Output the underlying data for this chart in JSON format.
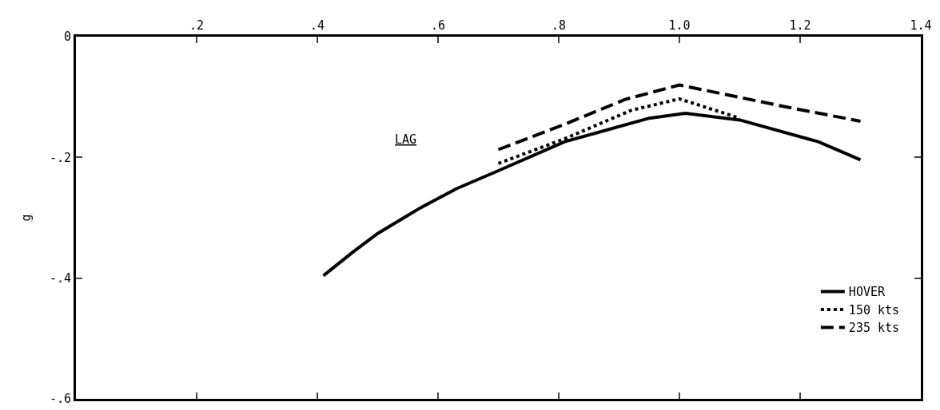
{
  "chart_data": {
    "type": "line",
    "ylabel": "g",
    "annotations": [
      "LAG"
    ],
    "xlim": [
      0,
      1.4
    ],
    "xticks": [
      {
        "value": 0.2,
        "label": ".2"
      },
      {
        "value": 0.4,
        "label": ".4"
      },
      {
        "value": 0.6,
        "label": ".6"
      },
      {
        "value": 0.8,
        "label": ".8"
      },
      {
        "value": 1,
        "label": "1.0"
      },
      {
        "value": 1.2,
        "label": "1.2"
      },
      {
        "value": 1.4,
        "label": "1.4"
      }
    ],
    "ylim": [
      -0.6,
      0
    ],
    "yticks": [
      0,
      {
        "value": -0.2,
        "label": "-.2"
      },
      {
        "value": -0.4,
        "label": "-.4"
      },
      {
        "value": -0.6,
        "label": "-.6"
      }
    ],
    "grid": false,
    "legend": "bottom right",
    "marker": "none",
    "series": [
      {
        "name": "HOVER",
        "color": "#000000",
        "line_style": "solid",
        "x": [
          0.41,
          0.46,
          0.5,
          0.57,
          0.63,
          0.7,
          0.81,
          0.95,
          1.01,
          1.1,
          1.23,
          1.3
        ],
        "values": [
          -0.396,
          -0.356,
          -0.326,
          -0.284,
          -0.252,
          -0.222,
          -0.174,
          -0.135,
          -0.127,
          -0.138,
          -0.174,
          -0.204
        ]
      },
      {
        "name": "150 kts",
        "color": "#000000",
        "line_style": "dotted",
        "x": [
          0.7,
          0.81,
          0.92,
          1.0,
          1.1
        ],
        "values": [
          -0.21,
          -0.169,
          -0.122,
          -0.103,
          -0.135
        ]
      },
      {
        "name": "235 kts",
        "color": "#000000",
        "line_style": "dashed",
        "x": [
          0.7,
          0.81,
          0.91,
          1.0,
          1.18,
          1.3
        ],
        "values": [
          -0.187,
          -0.145,
          -0.104,
          -0.08,
          -0.117,
          -0.14
        ]
      }
    ]
  }
}
